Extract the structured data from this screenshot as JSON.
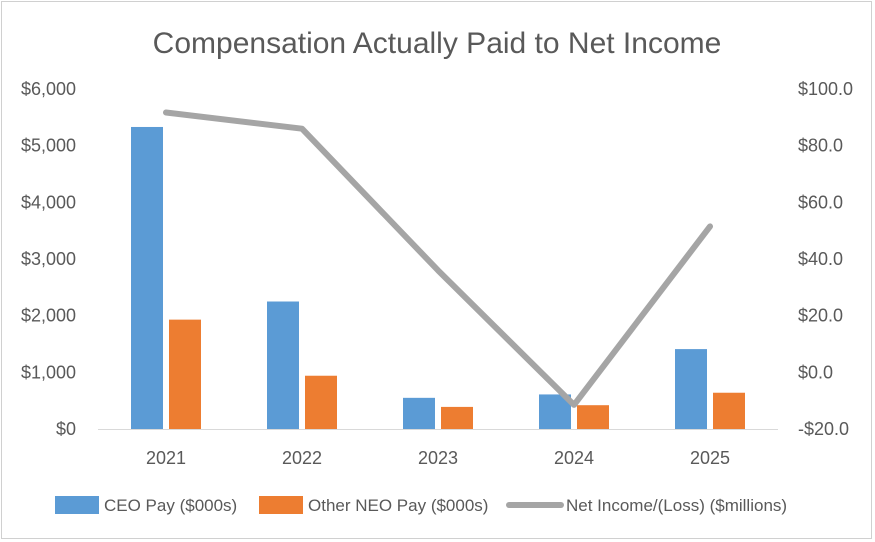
{
  "chart_data": {
    "type": "bar",
    "title": "Compensation Actually Paid to Net Income",
    "categories": [
      "2021",
      "2022",
      "2023",
      "2024",
      "2025"
    ],
    "series": [
      {
        "name": "CEO Pay ($000s)",
        "type": "bar",
        "axis": "left",
        "color": "#5b9bd5",
        "values": [
          5330,
          2250,
          550,
          610,
          1410
        ]
      },
      {
        "name": "Other NEO Pay ($000s)",
        "type": "bar",
        "axis": "left",
        "color": "#ed7d31",
        "values": [
          1930,
          940,
          390,
          420,
          640
        ]
      },
      {
        "name": "Net Income/(Loss) ($millions)",
        "type": "line",
        "axis": "right",
        "color": "#a5a5a5",
        "values": [
          91.7,
          86.0,
          36.0,
          -11.5,
          51.5
        ]
      }
    ],
    "y_left": {
      "range": [
        0,
        6000
      ],
      "ticks": [
        0,
        1000,
        2000,
        3000,
        4000,
        5000,
        6000
      ],
      "tick_labels": [
        "$0",
        "$1,000",
        "$2,000",
        "$3,000",
        "$4,000",
        "$5,000",
        "$6,000"
      ]
    },
    "y_right": {
      "range": [
        -20,
        100
      ],
      "ticks": [
        -20,
        0,
        20,
        40,
        60,
        80,
        100
      ],
      "tick_labels": [
        "-$20.0",
        "$0.0",
        "$20.0",
        "$40.0",
        "$60.0",
        "$80.0",
        "$100.0"
      ]
    },
    "grid": false,
    "legend_position": "bottom"
  }
}
